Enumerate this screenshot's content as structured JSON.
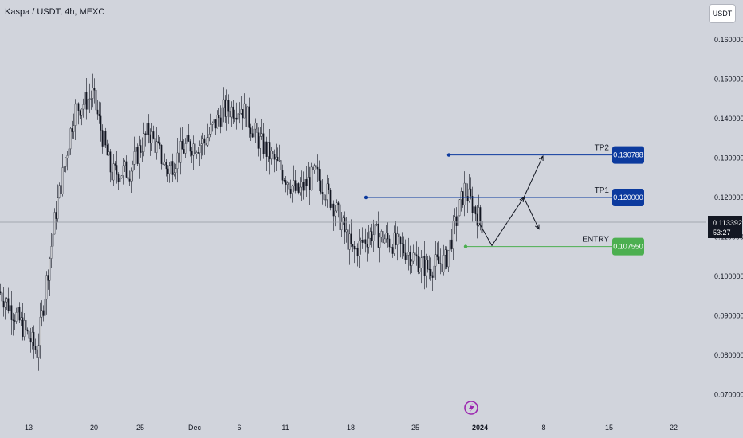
{
  "title": "Kaspa / USDT, 4h, MEXC",
  "currency_button": "USDT",
  "last_price": "0.113392",
  "countdown": "53:27",
  "chart_data": {
    "type": "candlestick",
    "ylim": [
      0.0665,
      0.1645
    ],
    "y_ticks": [
      {
        "v": 0.16,
        "label": "0.160000"
      },
      {
        "v": 0.15,
        "label": "0.150000"
      },
      {
        "v": 0.14,
        "label": "0.140000"
      },
      {
        "v": 0.13,
        "label": "0.130000"
      },
      {
        "v": 0.12,
        "label": "0.120000"
      },
      {
        "v": 0.11,
        "label": "0.110000"
      },
      {
        "v": 0.1,
        "label": "0.100000"
      },
      {
        "v": 0.09,
        "label": "0.090000"
      },
      {
        "v": 0.08,
        "label": "0.080000"
      },
      {
        "v": 0.07,
        "label": "0.070000"
      }
    ],
    "x_ticks": [
      "13",
      "20",
      "25",
      "Dec",
      "6",
      "11",
      "18",
      "25",
      "2024",
      "8",
      "15",
      "22"
    ],
    "price_path": [
      {
        "t": "Nov 9",
        "p": 0.096
      },
      {
        "t": "Nov 11",
        "p": 0.089
      },
      {
        "t": "Nov 13",
        "p": 0.081
      },
      {
        "t": "Nov 15",
        "p": 0.116
      },
      {
        "t": "Nov 17",
        "p": 0.142
      },
      {
        "t": "Nov 19",
        "p": 0.146
      },
      {
        "t": "Nov 21",
        "p": 0.126
      },
      {
        "t": "Nov 23",
        "p": 0.127
      },
      {
        "t": "Nov 25",
        "p": 0.137
      },
      {
        "t": "Nov 27",
        "p": 0.127
      },
      {
        "t": "Nov 29",
        "p": 0.133
      },
      {
        "t": "Dec 1",
        "p": 0.134
      },
      {
        "t": "Dec 3",
        "p": 0.142
      },
      {
        "t": "Dec 5",
        "p": 0.143
      },
      {
        "t": "Dec 7",
        "p": 0.134
      },
      {
        "t": "Dec 9",
        "p": 0.128
      },
      {
        "t": "Dec 11",
        "p": 0.121
      },
      {
        "t": "Dec 13",
        "p": 0.126
      },
      {
        "t": "Dec 15",
        "p": 0.118
      },
      {
        "t": "Dec 17",
        "p": 0.106
      },
      {
        "t": "Dec 19",
        "p": 0.111
      },
      {
        "t": "Dec 21",
        "p": 0.109
      },
      {
        "t": "Dec 23",
        "p": 0.106
      },
      {
        "t": "Dec 25",
        "p": 0.102
      },
      {
        "t": "Dec 27",
        "p": 0.104
      },
      {
        "t": "Dec 29",
        "p": 0.122
      },
      {
        "t": "Dec 31",
        "p": 0.113
      }
    ],
    "levels": [
      {
        "name": "TP2",
        "value": 0.130788,
        "box": "0.130788",
        "color": "#0c3a9e"
      },
      {
        "name": "TP1",
        "value": 0.12,
        "box": "0.120000",
        "color": "#0c3a9e"
      },
      {
        "name": "ENTRY",
        "value": 0.10755,
        "box": "0.107550",
        "color": "#4caf50"
      }
    ],
    "projection": [
      {
        "t": "Dec 31",
        "p": 0.1135
      },
      {
        "t": "Jan 2",
        "p": 0.1078
      },
      {
        "t": "Jan 5",
        "p": 0.12
      },
      {
        "t": "Jan 8",
        "p": 0.1305
      }
    ],
    "projection_alt": [
      {
        "t": "Jan 5",
        "p": 0.12
      },
      {
        "t": "Jan 7",
        "p": 0.112
      }
    ],
    "colors": {
      "background": "#d1d4dc",
      "candles": "#131722",
      "price_line": "#9598a1",
      "lightning": "#9c27b0"
    }
  }
}
